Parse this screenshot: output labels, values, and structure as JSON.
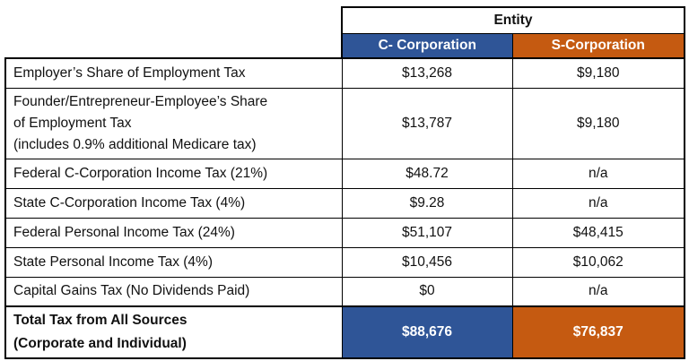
{
  "header": {
    "group_label": "Entity",
    "col_c": "C- Corporation",
    "col_s": "S-Corporation"
  },
  "colors": {
    "c_corporation": "#2f5597",
    "s_corporation": "#c55a11"
  },
  "rows": [
    {
      "label_lines": [
        "Employer’s Share of Employment Tax"
      ],
      "c": "$13,268",
      "s": "$9,180"
    },
    {
      "label_lines": [
        "Founder/Entrepreneur-Employee’s Share",
        "of Employment Tax",
        "(includes 0.9% additional Medicare tax)"
      ],
      "c": "$13,787",
      "s": "$9,180"
    },
    {
      "label_lines": [
        "Federal C-Corporation Income Tax (21%)"
      ],
      "c": "$48.72",
      "s": "n/a"
    },
    {
      "label_lines": [
        "State C-Corporation Income Tax (4%)"
      ],
      "c": "$9.28",
      "s": "n/a"
    },
    {
      "label_lines": [
        "Federal Personal Income Tax (24%)"
      ],
      "c": "$51,107",
      "s": "$48,415"
    },
    {
      "label_lines": [
        "State Personal Income Tax (4%)"
      ],
      "c": "$10,456",
      "s": "$10,062"
    },
    {
      "label_lines": [
        "Capital Gains Tax (No Dividends Paid)"
      ],
      "c": "$0",
      "s": "n/a"
    }
  ],
  "total": {
    "label_lines": [
      "Total Tax from All Sources",
      "(Corporate and Individual)"
    ],
    "c": "$88,676",
    "s": "$76,837"
  }
}
